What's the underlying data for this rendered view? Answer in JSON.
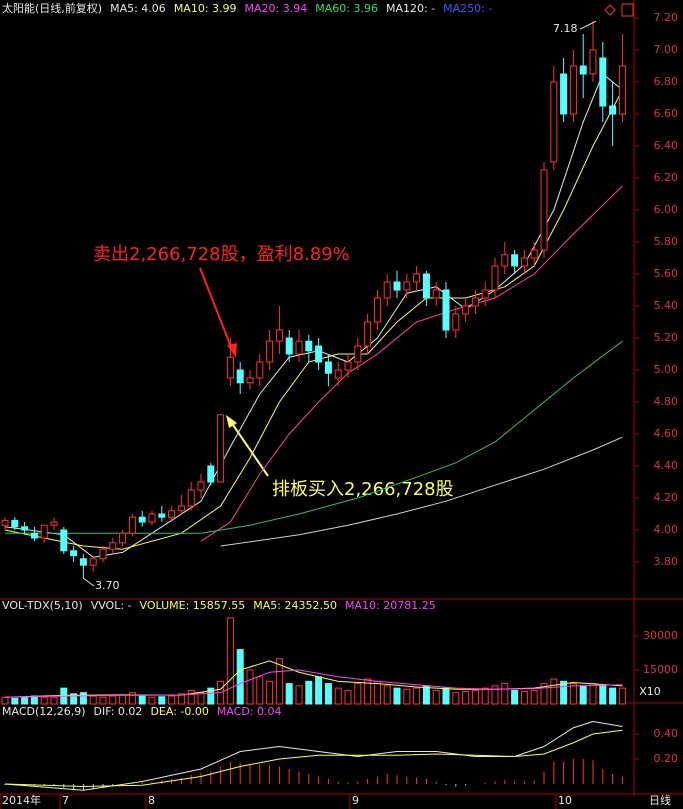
{
  "chart_data": [
    {
      "type": "candlestick",
      "header": [
        {
          "label": "太阳能(日线,前复权)",
          "color": "#e8e8e8"
        },
        {
          "label": "MA5: 4.06",
          "color": "#e8e8e8"
        },
        {
          "label": "MA10: 3.99",
          "color": "#ffff40"
        },
        {
          "label": "MA20: 3.94",
          "color": "#ff40ff"
        },
        {
          "label": "MA60: 3.96",
          "color": "#30e060"
        },
        {
          "label": "MA120: -",
          "color": "#e8e8e8"
        },
        {
          "label": "MA250: -",
          "color": "#3a5aff"
        }
      ],
      "up_color": "#ff3232",
      "down_color": "#54ffff",
      "ohlc": [
        [
          4.03,
          4.08,
          4.0,
          4.06
        ],
        [
          4.06,
          4.08,
          4.0,
          4.02
        ],
        [
          4.02,
          4.05,
          3.97,
          4.0
        ],
        [
          3.98,
          4.02,
          3.93,
          3.95
        ],
        [
          3.95,
          4.02,
          3.92,
          4.03
        ],
        [
          4.03,
          4.08,
          4.0,
          4.05
        ],
        [
          4.0,
          4.02,
          3.85,
          3.87
        ],
        [
          3.87,
          3.9,
          3.8,
          3.84
        ],
        [
          3.82,
          3.85,
          3.7,
          3.78
        ],
        [
          3.78,
          3.84,
          3.74,
          3.82
        ],
        [
          3.82,
          3.9,
          3.8,
          3.88
        ],
        [
          3.88,
          3.95,
          3.85,
          3.92
        ],
        [
          3.92,
          4.0,
          3.9,
          3.98
        ],
        [
          3.98,
          4.1,
          3.96,
          4.08
        ],
        [
          4.08,
          4.12,
          4.02,
          4.05
        ],
        [
          4.05,
          4.12,
          4.03,
          4.1
        ],
        [
          4.1,
          4.15,
          4.05,
          4.08
        ],
        [
          4.08,
          4.15,
          4.06,
          4.12
        ],
        [
          4.12,
          4.22,
          4.1,
          4.15
        ],
        [
          4.15,
          4.3,
          4.12,
          4.25
        ],
        [
          4.25,
          4.35,
          4.2,
          4.3
        ],
        [
          4.4,
          4.42,
          4.28,
          4.3
        ],
        [
          4.3,
          4.72,
          4.3,
          4.72
        ],
        [
          4.95,
          5.2,
          4.9,
          5.08
        ],
        [
          5.0,
          5.05,
          4.85,
          4.92
        ],
        [
          4.92,
          5.0,
          4.88,
          4.95
        ],
        [
          4.95,
          5.1,
          4.9,
          5.05
        ],
        [
          5.05,
          5.25,
          5.0,
          5.18
        ],
        [
          5.18,
          5.4,
          5.1,
          5.25
        ],
        [
          5.2,
          5.25,
          5.05,
          5.1
        ],
        [
          5.1,
          5.25,
          5.05,
          5.18
        ],
        [
          5.18,
          5.22,
          5.05,
          5.12
        ],
        [
          5.15,
          5.2,
          5.0,
          5.05
        ],
        [
          5.05,
          5.1,
          4.9,
          4.98
        ],
        [
          4.95,
          5.05,
          4.9,
          5.0
        ],
        [
          5.0,
          5.1,
          4.95,
          5.05
        ],
        [
          5.05,
          5.2,
          5.0,
          5.15
        ],
        [
          5.15,
          5.35,
          5.1,
          5.3
        ],
        [
          5.3,
          5.5,
          5.25,
          5.45
        ],
        [
          5.45,
          5.6,
          5.4,
          5.55
        ],
        [
          5.55,
          5.62,
          5.45,
          5.5
        ],
        [
          5.5,
          5.6,
          5.45,
          5.55
        ],
        [
          5.55,
          5.65,
          5.5,
          5.6
        ],
        [
          5.6,
          5.62,
          5.4,
          5.45
        ],
        [
          5.45,
          5.55,
          5.4,
          5.5
        ],
        [
          5.5,
          5.55,
          5.2,
          5.25
        ],
        [
          5.25,
          5.4,
          5.2,
          5.35
        ],
        [
          5.35,
          5.45,
          5.3,
          5.4
        ],
        [
          5.4,
          5.5,
          5.35,
          5.45
        ],
        [
          5.45,
          5.55,
          5.4,
          5.5
        ],
        [
          5.5,
          5.7,
          5.45,
          5.65
        ],
        [
          5.65,
          5.8,
          5.6,
          5.72
        ],
        [
          5.72,
          5.75,
          5.6,
          5.65
        ],
        [
          5.65,
          5.75,
          5.6,
          5.7
        ],
        [
          5.7,
          5.8,
          5.65,
          5.75
        ],
        [
          5.75,
          6.3,
          5.7,
          6.25
        ],
        [
          6.3,
          6.9,
          6.25,
          6.8
        ],
        [
          6.85,
          6.95,
          6.55,
          6.6
        ],
        [
          6.6,
          7.0,
          6.55,
          6.9
        ],
        [
          6.9,
          7.1,
          6.7,
          6.85
        ],
        [
          6.85,
          7.18,
          6.8,
          7.0
        ],
        [
          6.95,
          7.05,
          6.55,
          6.65
        ],
        [
          6.65,
          6.8,
          6.4,
          6.6
        ],
        [
          6.6,
          7.1,
          6.55,
          6.9
        ]
      ],
      "series": [
        {
          "name": "MA5",
          "color": "#e8e8e8",
          "x": [
            0,
            6,
            9,
            12,
            16,
            20,
            23,
            26,
            29,
            32,
            35,
            38,
            41,
            44,
            47,
            50,
            53,
            56,
            59,
            61,
            63
          ],
          "values": [
            4.02,
            3.97,
            3.83,
            3.86,
            4.02,
            4.18,
            4.52,
            4.85,
            5.08,
            5.12,
            5.05,
            5.2,
            5.48,
            5.52,
            5.38,
            5.5,
            5.66,
            6.0,
            6.55,
            6.85,
            6.75
          ]
        },
        {
          "name": "MA10",
          "color": "#ffff40",
          "x": [
            0,
            8,
            12,
            18,
            22,
            25,
            28,
            31,
            34,
            37,
            40,
            43,
            47,
            51,
            54,
            57,
            60,
            63
          ],
          "values": [
            4.0,
            3.9,
            3.88,
            3.98,
            4.15,
            4.45,
            4.8,
            5.05,
            5.1,
            5.1,
            5.3,
            5.45,
            5.45,
            5.52,
            5.65,
            6.0,
            6.4,
            6.75
          ]
        },
        {
          "name": "MA20",
          "color": "#ff40a0",
          "x": [
            20,
            23,
            26,
            29,
            32,
            35,
            38,
            42,
            46,
            50,
            54,
            58,
            63
          ],
          "values": [
            3.93,
            4.05,
            4.35,
            4.6,
            4.8,
            4.98,
            5.1,
            5.3,
            5.38,
            5.45,
            5.6,
            5.85,
            6.15
          ]
        },
        {
          "name": "MA60",
          "color": "#30c060",
          "x": [
            0,
            20,
            25,
            30,
            36,
            42,
            46,
            50,
            54,
            58,
            63
          ],
          "values": [
            3.98,
            3.98,
            4.03,
            4.1,
            4.2,
            4.33,
            4.42,
            4.55,
            4.75,
            4.95,
            5.18
          ]
        },
        {
          "name": "MA120",
          "color": "#d0d0d0",
          "x": [
            22,
            30,
            35,
            40,
            45,
            50,
            55,
            60,
            63
          ],
          "values": [
            3.9,
            3.97,
            4.03,
            4.1,
            4.18,
            4.28,
            4.38,
            4.5,
            4.58
          ]
        }
      ],
      "ylim": [
        3.575,
        7.3125
      ],
      "yticks": [
        {
          "value": 3.8,
          "label": "3.80"
        },
        {
          "value": 4.0,
          "label": "4.00"
        },
        {
          "value": 4.2,
          "label": "4.20"
        },
        {
          "value": 4.4,
          "label": "4.40"
        },
        {
          "value": 4.6,
          "label": "4.60"
        },
        {
          "value": 4.8,
          "label": "4.80"
        },
        {
          "value": 5.0,
          "label": "5.00"
        },
        {
          "value": 5.2,
          "label": "5.20"
        },
        {
          "value": 5.4,
          "label": "5.40"
        },
        {
          "value": 5.6,
          "label": "5.60"
        },
        {
          "value": 5.8,
          "label": "5.80"
        },
        {
          "value": 6.0,
          "label": "6.00"
        },
        {
          "value": 6.2,
          "label": "6.20"
        },
        {
          "value": 6.4,
          "label": "6.40"
        },
        {
          "value": 6.6,
          "label": "6.60"
        },
        {
          "value": 6.8,
          "label": "6.80"
        },
        {
          "value": 7.0,
          "label": "7.00"
        },
        {
          "value": 7.2,
          "label": "7.20"
        }
      ],
      "high_label": {
        "value": 7.18,
        "label": "7.18"
      },
      "low_label": {
        "value": 3.7,
        "label": "3.70"
      },
      "annotations": [
        "卖出2,266,728股，盈利8.89%",
        "排板买入2,266,728股"
      ],
      "x_axis_labels": [
        "2014年",
        "7",
        "8",
        "9",
        "10"
      ],
      "period": "日线"
    },
    {
      "type": "bar",
      "header": [
        {
          "label": "VOL-TDX(5,10)",
          "color": "#e8e8e8"
        },
        {
          "label": "VVOL: -",
          "color": "#e8e8e8"
        },
        {
          "label": "VOLUME: 15857.55",
          "color": "#ffff40"
        },
        {
          "label": "MA5: 24352.50",
          "color": "#ffff40"
        },
        {
          "label": "MA10: 20781.25",
          "color": "#ff40ff"
        }
      ],
      "values": [
        3000,
        2500,
        2800,
        3500,
        3000,
        2800,
        7000,
        4500,
        5000,
        3500,
        3000,
        3500,
        4000,
        5000,
        3500,
        3000,
        3200,
        3500,
        4500,
        6000,
        5000,
        7000,
        10000,
        38000,
        24000,
        15000,
        12000,
        10000,
        20000,
        9000,
        8000,
        10000,
        12000,
        9000,
        7000,
        6000,
        9000,
        11000,
        10000,
        8000,
        7000,
        6500,
        7000,
        8000,
        6000,
        7000,
        5000,
        5500,
        6000,
        7000,
        8000,
        9000,
        6000,
        5500,
        6000,
        9000,
        11000,
        10000,
        9000,
        8000,
        9000,
        8000,
        7000,
        7000
      ],
      "series": [
        {
          "name": "MA5",
          "color": "#ffff40",
          "x": [
            0,
            6,
            12,
            18,
            22,
            24,
            27,
            30,
            34,
            38,
            42,
            46,
            50,
            54,
            58,
            63
          ],
          "values": [
            3000,
            3800,
            4000,
            3900,
            6500,
            15000,
            19000,
            14000,
            10000,
            9000,
            7500,
            6500,
            6500,
            7000,
            9500,
            8000
          ]
        },
        {
          "name": "MA10",
          "color": "#ff40ff",
          "x": [
            0,
            6,
            12,
            18,
            22,
            24,
            27,
            30,
            34,
            38,
            42,
            46,
            50,
            54,
            58,
            63
          ],
          "values": [
            3000,
            3500,
            3800,
            4000,
            5000,
            9000,
            14000,
            15000,
            12000,
            10000,
            8500,
            7000,
            6500,
            6800,
            8000,
            8500
          ]
        }
      ],
      "ylim": [
        0,
        45000
      ],
      "yticks": [
        15000,
        30000
      ],
      "unit": "X10"
    },
    {
      "type": "line",
      "header": [
        {
          "label": "MACD(12,26,9)",
          "color": "#e8e8e8"
        },
        {
          "label": "DIF: 0.02",
          "color": "#e8e8e8"
        },
        {
          "label": "DEA: -0.00",
          "color": "#ffff40"
        },
        {
          "label": "MACD: 0.04",
          "color": "#ff40ff"
        }
      ],
      "histogram": [
        -0.01,
        -0.01,
        -0.01,
        -0.01,
        -0.01,
        -0.01,
        -0.03,
        -0.04,
        -0.05,
        -0.04,
        -0.03,
        -0.02,
        -0.01,
        0.01,
        0.02,
        0.02,
        0.03,
        0.04,
        0.05,
        0.07,
        0.09,
        0.1,
        0.14,
        0.18,
        0.17,
        0.16,
        0.16,
        0.15,
        0.14,
        0.12,
        0.1,
        0.08,
        0.06,
        0.04,
        0.02,
        0.01,
        0.02,
        0.04,
        0.06,
        0.08,
        0.07,
        0.06,
        0.05,
        0.04,
        0.02,
        -0.01,
        -0.02,
        -0.01,
        0.0,
        0.01,
        0.02,
        0.03,
        0.02,
        0.02,
        0.03,
        0.1,
        0.18,
        0.18,
        0.2,
        0.2,
        0.19,
        0.12,
        0.08,
        0.06
      ],
      "series": [
        {
          "name": "DIF",
          "color": "#e8e8e8",
          "x": [
            0,
            8,
            14,
            20,
            24,
            28,
            32,
            36,
            40,
            44,
            48,
            52,
            55,
            58,
            60,
            63
          ],
          "values": [
            0.0,
            -0.05,
            0.02,
            0.12,
            0.26,
            0.3,
            0.26,
            0.22,
            0.26,
            0.26,
            0.22,
            0.22,
            0.3,
            0.45,
            0.5,
            0.46
          ]
        },
        {
          "name": "DEA",
          "color": "#ffff40",
          "x": [
            0,
            8,
            14,
            20,
            24,
            28,
            32,
            36,
            40,
            44,
            48,
            52,
            55,
            58,
            60,
            63
          ],
          "values": [
            0.0,
            -0.02,
            -0.01,
            0.06,
            0.14,
            0.2,
            0.23,
            0.23,
            0.23,
            0.24,
            0.23,
            0.22,
            0.24,
            0.33,
            0.4,
            0.43
          ]
        }
      ],
      "ylim": [
        -0.064,
        0.624
      ],
      "yticks": [
        {
          "value": 0.2,
          "label": "0.20"
        },
        {
          "value": 0.4,
          "label": "0.40"
        }
      ]
    }
  ]
}
